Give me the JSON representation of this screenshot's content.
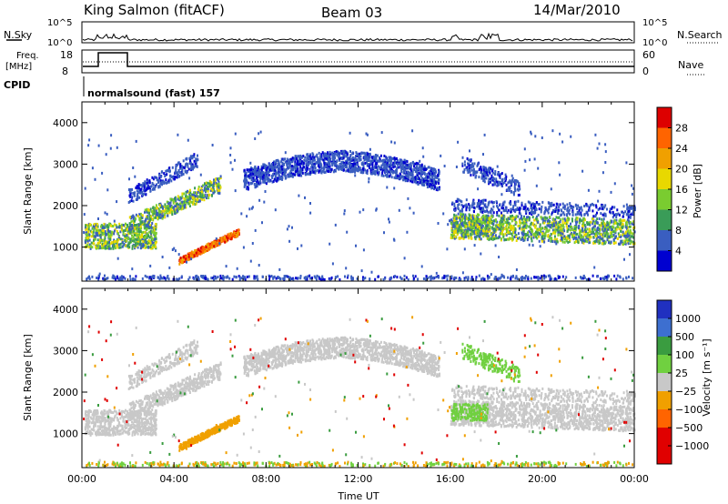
{
  "header": {
    "station": "King Salmon (fitACF)",
    "beam": "Beam 03",
    "date": "14/Mar/2010"
  },
  "top_panel": {
    "left_label": "N.Sky",
    "right_label": "N.Search",
    "ticks": [
      "10^5",
      "10^0"
    ]
  },
  "freq_panel": {
    "left_label_1": "Freq.",
    "left_label_2": "[MHz]",
    "right_label": "Nave",
    "left_ticks": [
      "18",
      "8"
    ],
    "right_ticks": [
      "60",
      "0"
    ]
  },
  "cpid": {
    "label": "CPID",
    "text": "normalsound (fast) 157"
  },
  "chart_data": [
    {
      "type": "heatmap",
      "quantity": "Power",
      "ylabel": "Slant Range [km]",
      "xlabel": "Time UT",
      "ylim": [
        180,
        4500
      ],
      "yticks": [
        1000,
        2000,
        3000,
        4000
      ],
      "xlim": [
        0,
        24
      ],
      "colorbar_label": "Power [dB]",
      "colorbar_ticks": [
        "28",
        "24",
        "20",
        "16",
        "12",
        "8",
        "4"
      ],
      "colorbar_colors": [
        "#dd0000",
        "#ff6400",
        "#f0a000",
        "#e8d800",
        "#7acc30",
        "#3a9c58",
        "#3a5ec0",
        "#0000d0"
      ]
    },
    {
      "type": "heatmap",
      "quantity": "Velocity",
      "ylabel": "Slant Range [km]",
      "xlabel": "Time UT",
      "ylim": [
        180,
        4500
      ],
      "yticks": [
        1000,
        2000,
        3000,
        4000
      ],
      "xlim": [
        0,
        24
      ],
      "xticks": [
        "00:00",
        "04:00",
        "08:00",
        "12:00",
        "16:00",
        "20:00",
        "00:00"
      ],
      "colorbar_label": "Velocity [m s⁻¹]",
      "colorbar_ticks": [
        "1000",
        "500",
        "100",
        "25",
        "−25",
        "−100",
        "−500",
        "−1000"
      ],
      "colorbar_colors": [
        "#2030c0",
        "#3d6fd0",
        "#3a9c40",
        "#70d040",
        "#c8c8c8",
        "#f0a000",
        "#ff6400",
        "#e00000",
        "#e00000"
      ]
    }
  ],
  "x_axis_title": "Time UT"
}
